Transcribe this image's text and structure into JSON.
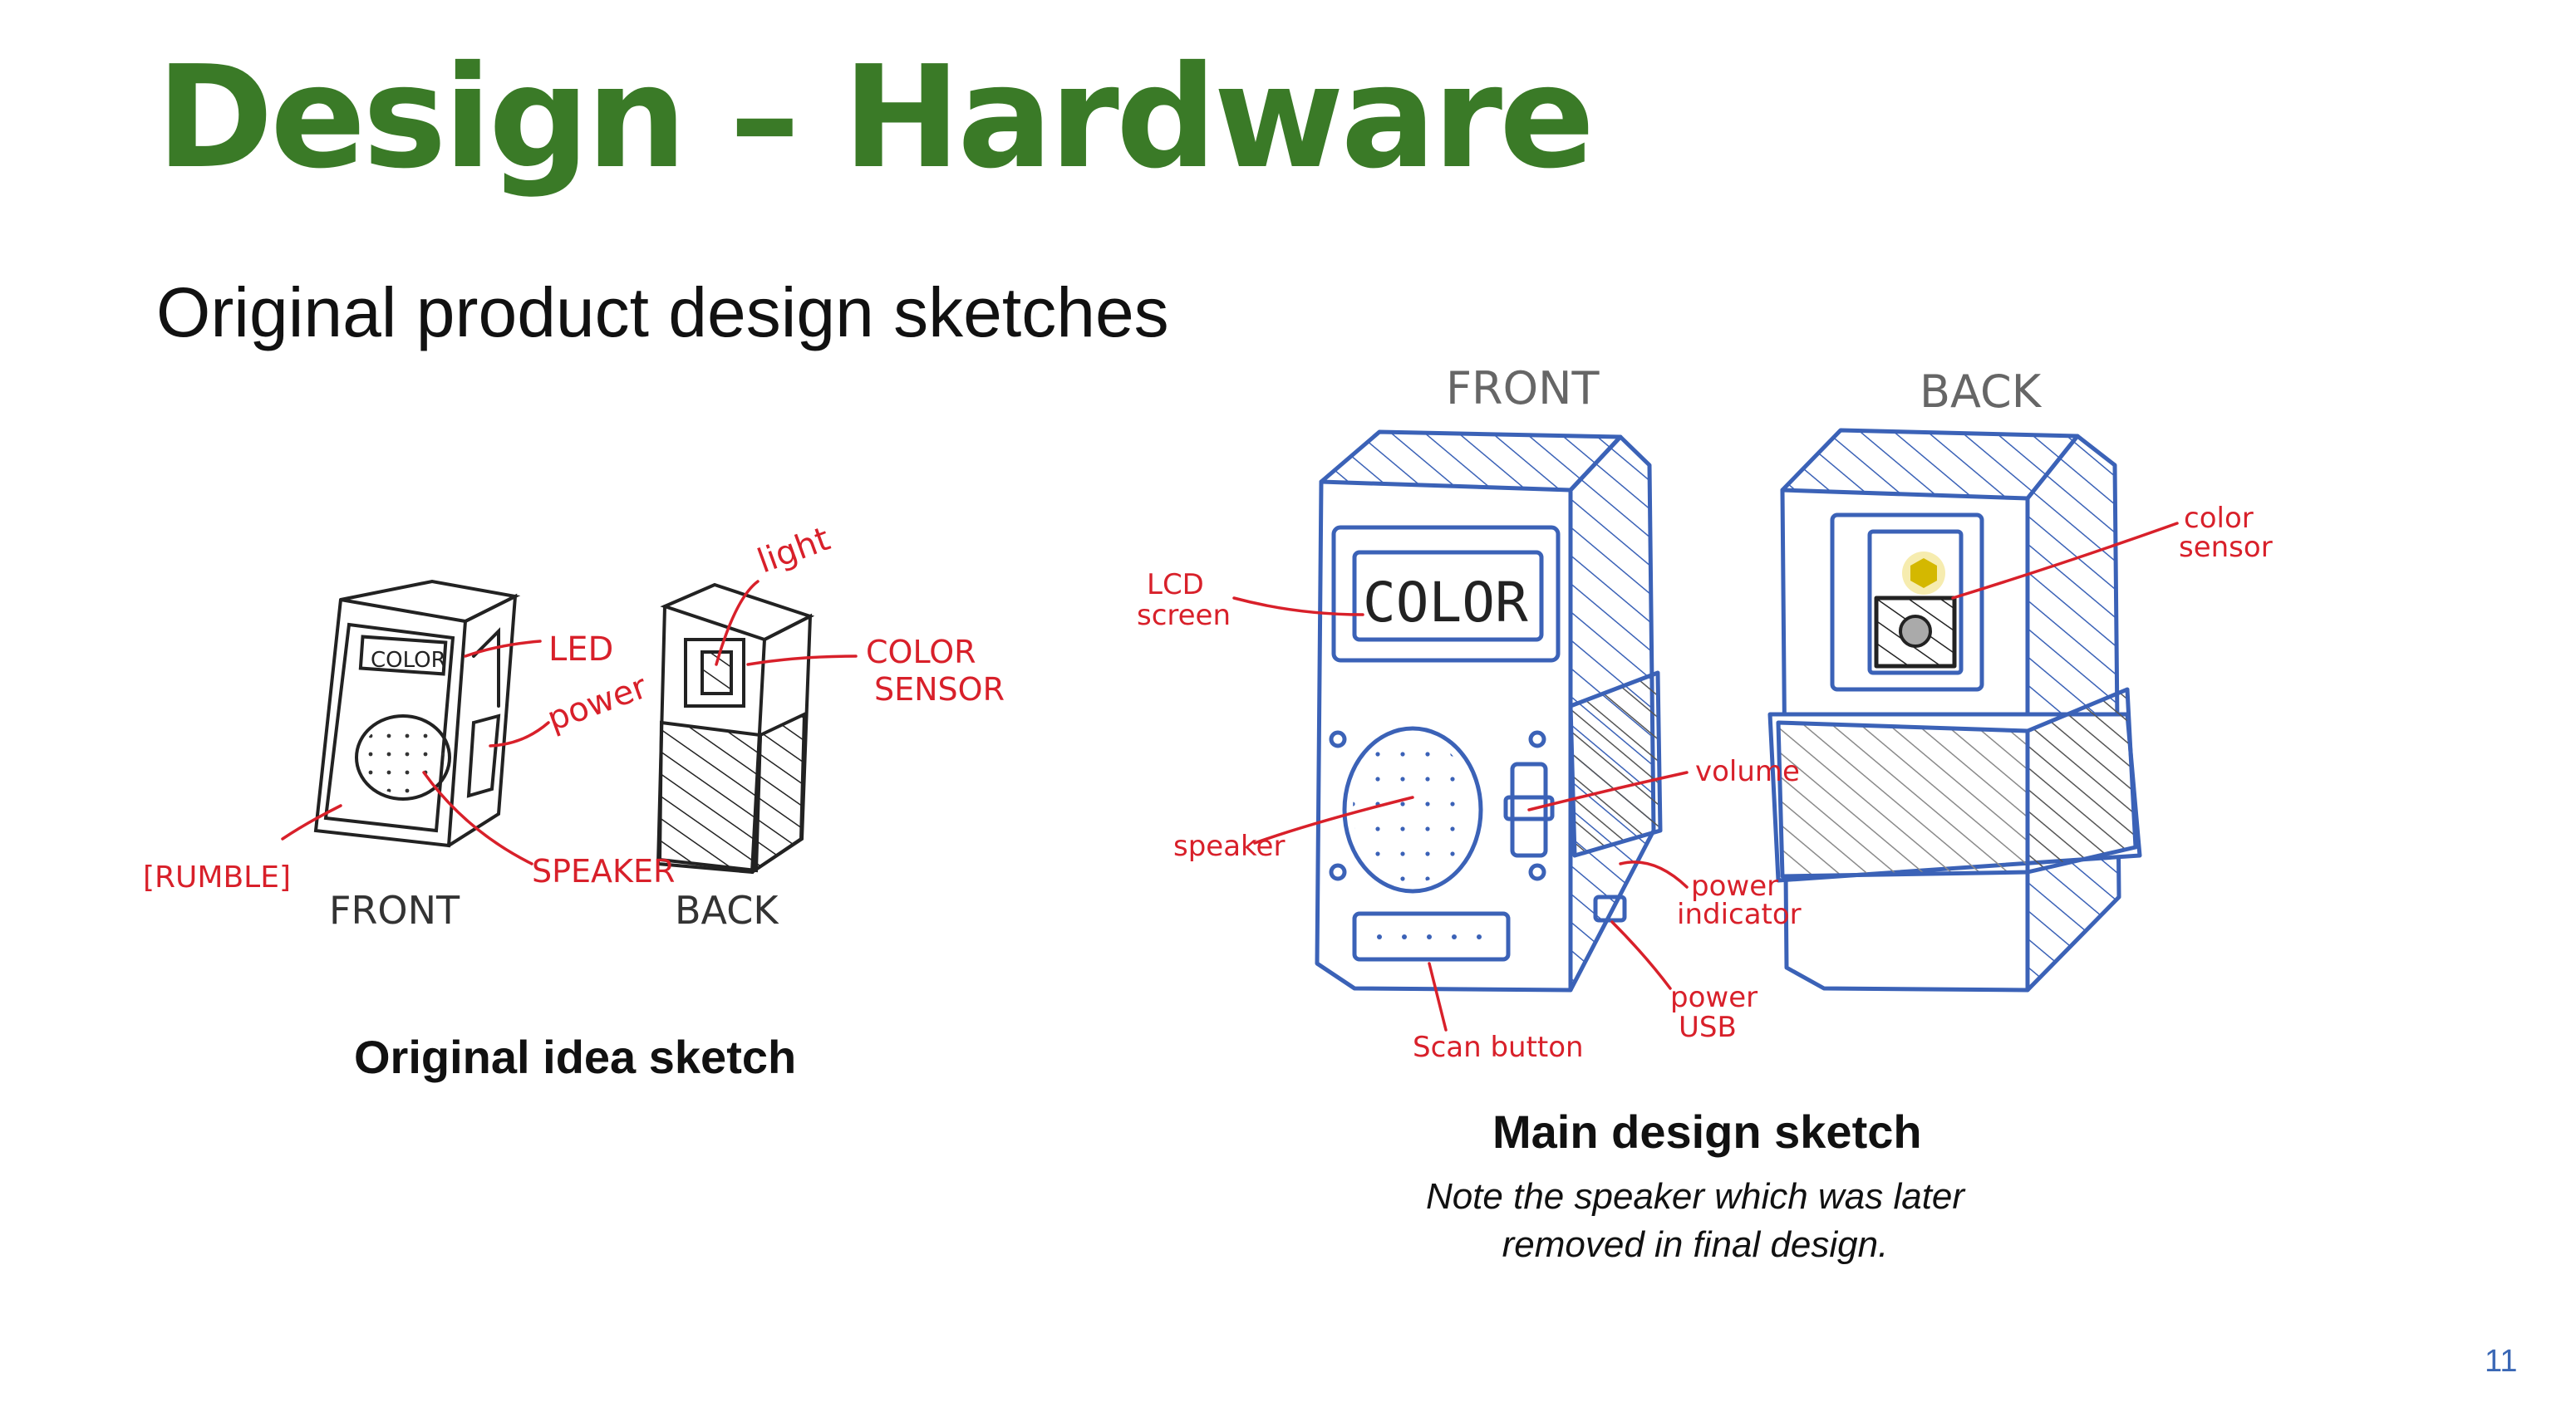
{
  "slide": {
    "title": "Design – Hardware",
    "subtitle": "Original product design sketches",
    "page_number": "11"
  },
  "left_sketch": {
    "caption": "Original idea sketch",
    "screen_text": "COLOR",
    "labels": {
      "led": "LED",
      "power": "power",
      "rumble": "[RUMBLE]",
      "speaker": "SPEAKER",
      "light": "light",
      "color_sensor_1": "COLOR",
      "color_sensor_2": "SENSOR",
      "front": "FRONT",
      "back": "BACK"
    }
  },
  "right_sketch": {
    "caption": "Main design sketch",
    "note": "Note the speaker which was later removed in final design.",
    "screen_text": "COLOR",
    "labels": {
      "front": "FRONT",
      "back": "BACK",
      "lcd_1": "LCD",
      "lcd_2": "screen",
      "speaker": "speaker",
      "volume": "volume",
      "power_indicator_1": "power",
      "power_indicator_2": "indicator",
      "power_usb_1": "power",
      "power_usb_2": "USB",
      "scan_button": "Scan button",
      "color_sensor_1": "color",
      "color_sensor_2": "sensor"
    }
  },
  "colors": {
    "title_green": "#3a7a27",
    "sketch_blue": "#3b62b7",
    "annotation_red": "#d8202a",
    "page_number_blue": "#3a67b5"
  }
}
